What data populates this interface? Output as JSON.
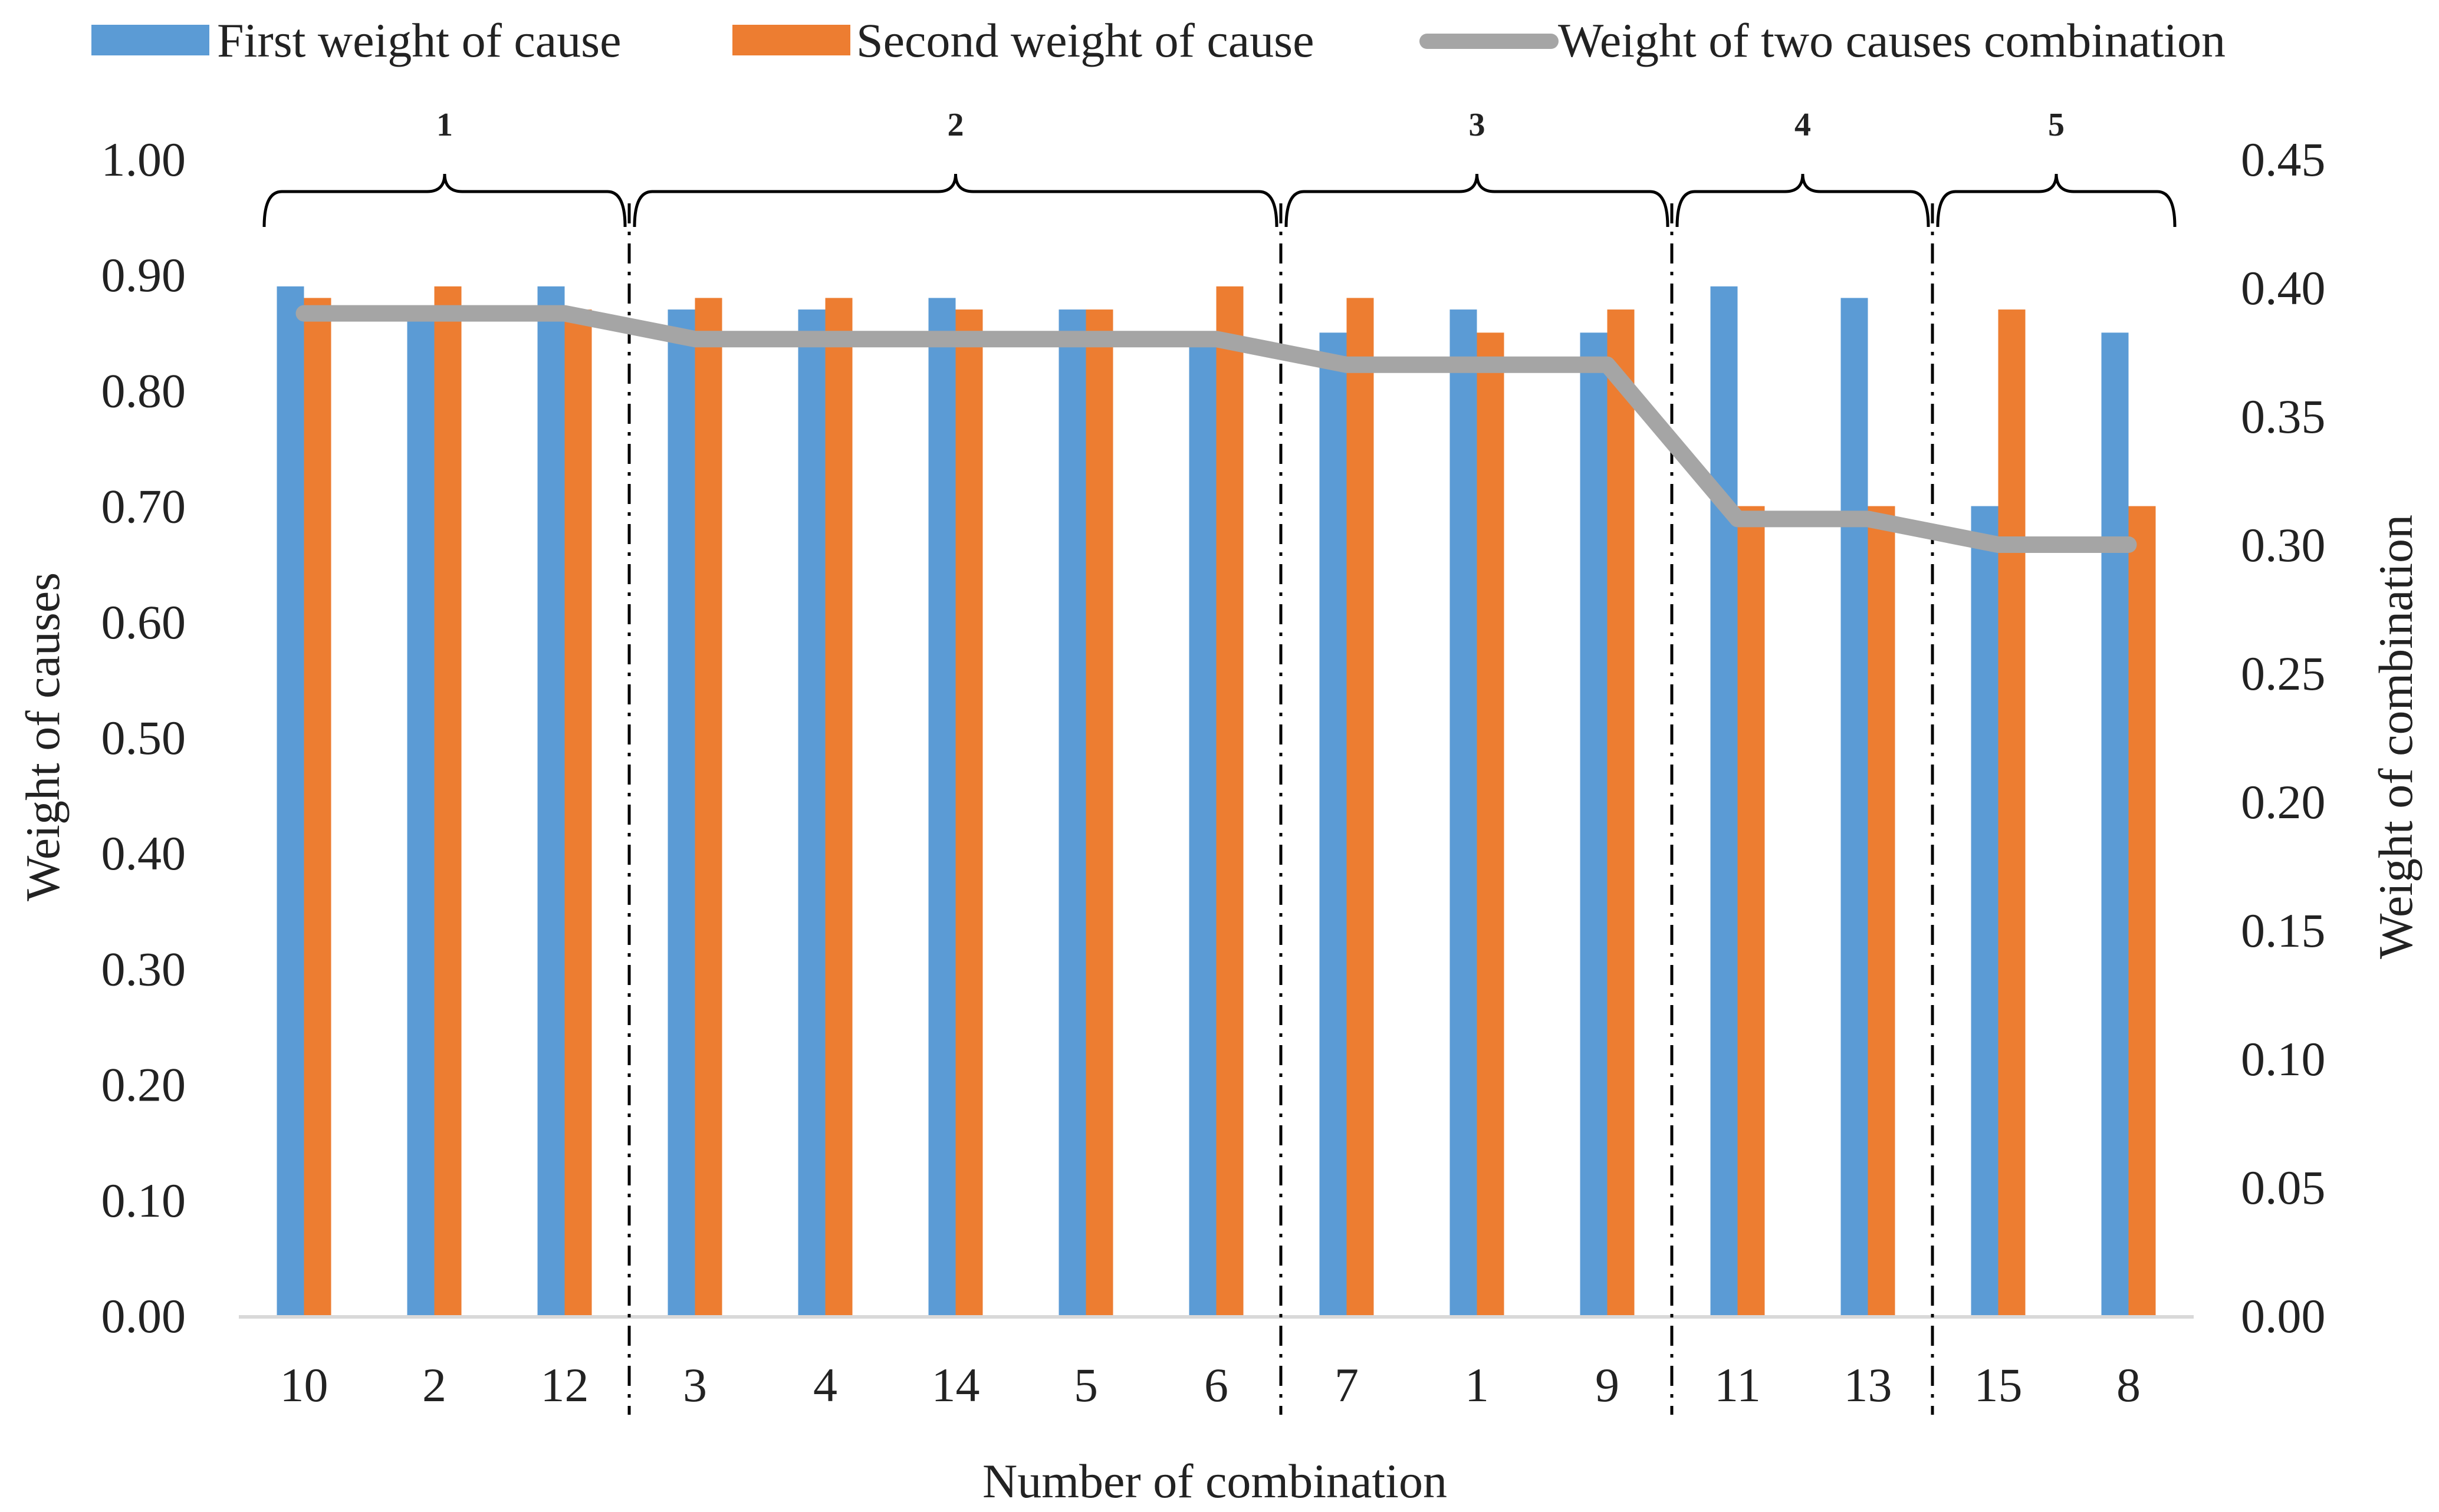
{
  "legend": {
    "first": "First weight of cause",
    "second": "Second weight of cause",
    "combination": "Weight of two causes combination"
  },
  "colors": {
    "first": "#5B9BD5",
    "second": "#ED7D31",
    "combination": "#A5A5A5",
    "axis": "#D9D9D9",
    "divider": "#000000"
  },
  "chart_data": {
    "type": "bar",
    "title": "",
    "xlabel": "Number of combination",
    "ylabel": "Weight of causes",
    "y2label": "Weight of combination",
    "categories": [
      "10",
      "2",
      "12",
      "3",
      "4",
      "14",
      "5",
      "6",
      "7",
      "1",
      "9",
      "11",
      "13",
      "15",
      "8"
    ],
    "ylim": [
      0,
      1.0
    ],
    "y2lim": [
      0,
      0.45
    ],
    "yticks": [
      "0.00",
      "0.10",
      "0.20",
      "0.30",
      "0.40",
      "0.50",
      "0.60",
      "0.70",
      "0.80",
      "0.90",
      "1.00"
    ],
    "y2ticks": [
      "0.00",
      "0.05",
      "0.10",
      "0.15",
      "0.20",
      "0.25",
      "0.30",
      "0.35",
      "0.40",
      "0.45"
    ],
    "series": [
      {
        "name": "First weight of cause",
        "type": "bar",
        "axis": "left",
        "values": [
          0.89,
          0.86,
          0.89,
          0.87,
          0.87,
          0.88,
          0.87,
          0.85,
          0.85,
          0.87,
          0.85,
          0.89,
          0.88,
          0.7,
          0.85
        ]
      },
      {
        "name": "Second weight of cause",
        "type": "bar",
        "axis": "left",
        "values": [
          0.88,
          0.89,
          0.87,
          0.88,
          0.88,
          0.87,
          0.87,
          0.89,
          0.88,
          0.85,
          0.87,
          0.7,
          0.7,
          0.87,
          0.7
        ]
      },
      {
        "name": "Weight of two causes combination",
        "type": "line",
        "axis": "right",
        "values": [
          0.39,
          0.39,
          0.39,
          0.38,
          0.38,
          0.38,
          0.38,
          0.38,
          0.37,
          0.37,
          0.37,
          0.31,
          0.31,
          0.3,
          0.3
        ]
      }
    ],
    "groups": [
      {
        "label": "1",
        "start": 0,
        "end": 2
      },
      {
        "label": "2",
        "start": 3,
        "end": 7
      },
      {
        "label": "3",
        "start": 8,
        "end": 10
      },
      {
        "label": "4",
        "start": 11,
        "end": 12
      },
      {
        "label": "5",
        "start": 13,
        "end": 14
      }
    ]
  }
}
